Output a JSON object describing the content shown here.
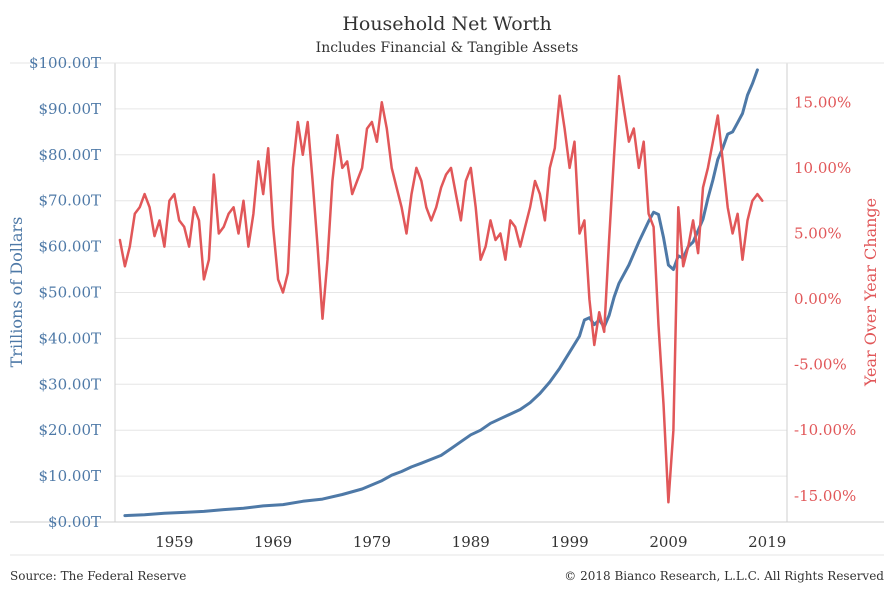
{
  "chart_data": {
    "type": "line",
    "title": "Household Net Worth",
    "subtitle": "Includes Financial & Tangible Assets",
    "ylabel_left": "Trillions of Dollars",
    "ylabel_right": "Year Over Year Change",
    "source": "Source: The Federal Reserve",
    "copyright": "© 2018 Bianco Research, L.L.C. All Rights Reserved",
    "grid": true,
    "xlim": [
      1953,
      2021
    ],
    "ylim_left": [
      0,
      100
    ],
    "ylim_right": [
      -17,
      18
    ],
    "x_ticks": [
      1959,
      1969,
      1979,
      1989,
      1999,
      2009,
      2019
    ],
    "x_tick_labels": [
      "1959",
      "1969",
      "1979",
      "1989",
      "1999",
      "2009",
      "2019"
    ],
    "y_left_ticks": [
      0,
      10,
      20,
      30,
      40,
      50,
      60,
      70,
      80,
      90,
      100
    ],
    "y_left_tick_labels": [
      "$0.00T",
      "$10.00T",
      "$20.00T",
      "$30.00T",
      "$40.00T",
      "$50.00T",
      "$60.00T",
      "$70.00T",
      "$80.00T",
      "$90.00T",
      "$100.00T"
    ],
    "y_right_ticks": [
      -15,
      -10,
      -5,
      0,
      5,
      10,
      15
    ],
    "y_right_tick_labels": [
      "-15.00%",
      "-10.00%",
      "-5.00%",
      "0.00%",
      "5.00%",
      "10.00%",
      "15.00%"
    ],
    "colors": {
      "net_worth": "#4e79a7",
      "yoy": "#e15759",
      "left_axis": "#4e79a7",
      "right_axis": "#e15759",
      "grid": "#e6e6e6"
    },
    "series": [
      {
        "name": "Household Net Worth",
        "axis": "left",
        "color": "#4e79a7",
        "points": [
          [
            1954,
            1.4
          ],
          [
            1956,
            1.6
          ],
          [
            1958,
            1.9
          ],
          [
            1960,
            2.1
          ],
          [
            1962,
            2.3
          ],
          [
            1964,
            2.7
          ],
          [
            1966,
            3.0
          ],
          [
            1968,
            3.5
          ],
          [
            1970,
            3.8
          ],
          [
            1972,
            4.5
          ],
          [
            1974,
            5.0
          ],
          [
            1976,
            6.0
          ],
          [
            1978,
            7.2
          ],
          [
            1980,
            9.0
          ],
          [
            1981,
            10.2
          ],
          [
            1982,
            11.0
          ],
          [
            1983,
            12.0
          ],
          [
            1984,
            12.8
          ],
          [
            1986,
            14.5
          ],
          [
            1987,
            16.0
          ],
          [
            1988,
            17.5
          ],
          [
            1989,
            19.0
          ],
          [
            1990,
            20.0
          ],
          [
            1991,
            21.5
          ],
          [
            1992,
            22.5
          ],
          [
            1993,
            23.5
          ],
          [
            1994,
            24.5
          ],
          [
            1995,
            26.0
          ],
          [
            1996,
            28.0
          ],
          [
            1997,
            30.5
          ],
          [
            1998,
            33.5
          ],
          [
            1999,
            37.0
          ],
          [
            2000,
            40.5
          ],
          [
            2000.5,
            44.0
          ],
          [
            2001,
            44.5
          ],
          [
            2001.5,
            43.0
          ],
          [
            2002,
            44.0
          ],
          [
            2002.5,
            42.5
          ],
          [
            2003,
            45.0
          ],
          [
            2003.5,
            49.0
          ],
          [
            2004,
            52.0
          ],
          [
            2005,
            56.0
          ],
          [
            2006,
            61.0
          ],
          [
            2007,
            65.5
          ],
          [
            2007.5,
            67.5
          ],
          [
            2008,
            67.0
          ],
          [
            2008.5,
            62.0
          ],
          [
            2009,
            56.0
          ],
          [
            2009.5,
            55.0
          ],
          [
            2010,
            58.0
          ],
          [
            2010.5,
            57.5
          ],
          [
            2011,
            60.0
          ],
          [
            2011.5,
            61.0
          ],
          [
            2012,
            63.5
          ],
          [
            2012.5,
            66.0
          ],
          [
            2013,
            70.5
          ],
          [
            2013.5,
            74.5
          ],
          [
            2014,
            79.0
          ],
          [
            2014.5,
            81.5
          ],
          [
            2015,
            84.5
          ],
          [
            2015.5,
            85.0
          ],
          [
            2016,
            87.0
          ],
          [
            2016.5,
            89.0
          ],
          [
            2017,
            93.0
          ],
          [
            2017.5,
            95.5
          ],
          [
            2018,
            98.5
          ]
        ]
      },
      {
        "name": "Year Over Year Change",
        "axis": "right",
        "color": "#e15759",
        "points": [
          [
            1953.5,
            4.5
          ],
          [
            1954,
            2.5
          ],
          [
            1954.5,
            4.0
          ],
          [
            1955,
            6.5
          ],
          [
            1955.5,
            7.0
          ],
          [
            1956,
            8.0
          ],
          [
            1956.5,
            7.0
          ],
          [
            1957,
            4.8
          ],
          [
            1957.5,
            6.0
          ],
          [
            1958,
            4.0
          ],
          [
            1958.5,
            7.5
          ],
          [
            1959,
            8.0
          ],
          [
            1959.5,
            6.0
          ],
          [
            1960,
            5.5
          ],
          [
            1960.5,
            4.0
          ],
          [
            1961,
            7.0
          ],
          [
            1961.5,
            6.0
          ],
          [
            1962,
            1.5
          ],
          [
            1962.5,
            3.0
          ],
          [
            1963,
            9.5
          ],
          [
            1963.5,
            5.0
          ],
          [
            1964,
            5.5
          ],
          [
            1964.5,
            6.5
          ],
          [
            1965,
            7.0
          ],
          [
            1965.5,
            5.0
          ],
          [
            1966,
            7.5
          ],
          [
            1966.5,
            4.0
          ],
          [
            1967,
            6.5
          ],
          [
            1967.5,
            10.5
          ],
          [
            1968,
            8.0
          ],
          [
            1968.5,
            11.5
          ],
          [
            1969,
            5.5
          ],
          [
            1969.5,
            1.5
          ],
          [
            1970,
            0.5
          ],
          [
            1970.5,
            2.0
          ],
          [
            1971,
            10.0
          ],
          [
            1971.5,
            13.5
          ],
          [
            1972,
            11.0
          ],
          [
            1972.5,
            13.5
          ],
          [
            1973,
            9.0
          ],
          [
            1973.5,
            4.0
          ],
          [
            1974,
            -1.5
          ],
          [
            1974.5,
            3.0
          ],
          [
            1975,
            9.0
          ],
          [
            1975.5,
            12.5
          ],
          [
            1976,
            10.0
          ],
          [
            1976.5,
            10.5
          ],
          [
            1977,
            8.0
          ],
          [
            1977.5,
            9.0
          ],
          [
            1978,
            10.0
          ],
          [
            1978.5,
            13.0
          ],
          [
            1979,
            13.5
          ],
          [
            1979.5,
            12.0
          ],
          [
            1980,
            15.0
          ],
          [
            1980.5,
            13.0
          ],
          [
            1981,
            10.0
          ],
          [
            1981.5,
            8.5
          ],
          [
            1982,
            7.0
          ],
          [
            1982.5,
            5.0
          ],
          [
            1983,
            8.0
          ],
          [
            1983.5,
            10.0
          ],
          [
            1984,
            9.0
          ],
          [
            1984.5,
            7.0
          ],
          [
            1985,
            6.0
          ],
          [
            1985.5,
            7.0
          ],
          [
            1986,
            8.5
          ],
          [
            1986.5,
            9.5
          ],
          [
            1987,
            10.0
          ],
          [
            1987.5,
            8.0
          ],
          [
            1988,
            6.0
          ],
          [
            1988.5,
            9.0
          ],
          [
            1989,
            10.0
          ],
          [
            1989.5,
            7.0
          ],
          [
            1990,
            3.0
          ],
          [
            1990.5,
            4.0
          ],
          [
            1991,
            6.0
          ],
          [
            1991.5,
            4.5
          ],
          [
            1992,
            5.0
          ],
          [
            1992.5,
            3.0
          ],
          [
            1993,
            6.0
          ],
          [
            1993.5,
            5.5
          ],
          [
            1994,
            4.0
          ],
          [
            1994.5,
            5.5
          ],
          [
            1995,
            7.0
          ],
          [
            1995.5,
            9.0
          ],
          [
            1996,
            8.0
          ],
          [
            1996.5,
            6.0
          ],
          [
            1997,
            10.0
          ],
          [
            1997.5,
            11.5
          ],
          [
            1998,
            15.5
          ],
          [
            1998.5,
            13.0
          ],
          [
            1999,
            10.0
          ],
          [
            1999.5,
            12.0
          ],
          [
            2000,
            5.0
          ],
          [
            2000.5,
            6.0
          ],
          [
            2001,
            0.0
          ],
          [
            2001.5,
            -3.5
          ],
          [
            2002,
            -1.0
          ],
          [
            2002.5,
            -2.5
          ],
          [
            2003,
            4.5
          ],
          [
            2003.5,
            11.0
          ],
          [
            2004,
            17.0
          ],
          [
            2004.5,
            14.5
          ],
          [
            2005,
            12.0
          ],
          [
            2005.5,
            13.0
          ],
          [
            2006,
            10.0
          ],
          [
            2006.5,
            12.0
          ],
          [
            2007,
            6.5
          ],
          [
            2007.5,
            5.5
          ],
          [
            2008,
            -2.0
          ],
          [
            2008.5,
            -8.0
          ],
          [
            2009,
            -15.5
          ],
          [
            2009.5,
            -10.0
          ],
          [
            2010,
            7.0
          ],
          [
            2010.5,
            2.5
          ],
          [
            2011,
            4.0
          ],
          [
            2011.5,
            6.0
          ],
          [
            2012,
            3.5
          ],
          [
            2012.5,
            8.5
          ],
          [
            2013,
            10.0
          ],
          [
            2013.5,
            12.0
          ],
          [
            2014,
            14.0
          ],
          [
            2014.5,
            10.5
          ],
          [
            2015,
            7.0
          ],
          [
            2015.5,
            5.0
          ],
          [
            2016,
            6.5
          ],
          [
            2016.5,
            3.0
          ],
          [
            2017,
            6.0
          ],
          [
            2017.5,
            7.5
          ],
          [
            2018,
            8.0
          ],
          [
            2018.5,
            7.5
          ]
        ]
      }
    ]
  }
}
